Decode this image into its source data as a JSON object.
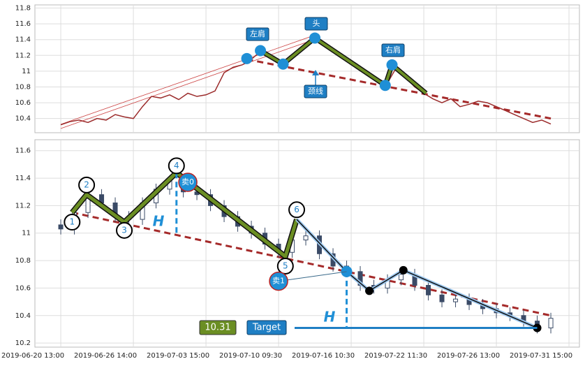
{
  "chart_data": [
    {
      "type": "line",
      "color": "#9b2b2b",
      "x": [
        0,
        2,
        4,
        6,
        8,
        10,
        12,
        14,
        16,
        18,
        20,
        22,
        24,
        26,
        28,
        30,
        32,
        34,
        36,
        38,
        40,
        42,
        44,
        46,
        48,
        50,
        52,
        54,
        56,
        58,
        60,
        62,
        64,
        66,
        68,
        70,
        72,
        74,
        76,
        78,
        80,
        82,
        84,
        86,
        88,
        90,
        92,
        94,
        96,
        98,
        100,
        102,
        104,
        106,
        108
      ],
      "values": [
        10.32,
        10.36,
        10.38,
        10.35,
        10.4,
        10.38,
        10.45,
        10.42,
        10.4,
        10.55,
        10.68,
        10.66,
        10.7,
        10.64,
        10.72,
        10.68,
        10.7,
        10.75,
        10.98,
        11.05,
        11.08,
        11.15,
        11.25,
        11.2,
        11.12,
        11.1,
        11.25,
        11.35,
        11.42,
        11.35,
        11.25,
        11.2,
        11.1,
        11.05,
        10.98,
        10.9,
        10.85,
        11.05,
        10.92,
        10.8,
        10.72,
        10.65,
        10.6,
        10.65,
        10.55,
        10.58,
        10.62,
        10.6,
        10.55,
        10.5,
        10.45,
        10.4,
        10.35,
        10.38,
        10.33
      ],
      "xlim": [
        -5.7,
        114.3
      ],
      "ylim": [
        10.22,
        11.84
      ],
      "yticks": [
        10.4,
        10.6,
        10.8,
        11.0,
        11.2,
        11.4,
        11.6,
        11.8
      ],
      "xticks": [
        0,
        16,
        32,
        48,
        64,
        80,
        96,
        112
      ],
      "grid": true,
      "neckline": {
        "x": [
          41,
          108
        ],
        "y": [
          11.15,
          10.4
        ]
      },
      "channel": {
        "x": [
          0,
          56
        ],
        "y": [
          10.3,
          11.43
        ]
      },
      "pattern": {
        "x": [
          44,
          49,
          56,
          71.5,
          73,
          80.5
        ],
        "y": [
          11.26,
          11.09,
          11.42,
          10.82,
          11.08,
          10.72
        ]
      },
      "points": {
        "x": [
          41,
          44,
          49,
          56,
          71.5,
          73
        ],
        "y": [
          11.16,
          11.26,
          11.09,
          11.42,
          10.82,
          11.08
        ]
      },
      "labels": [
        "左肩",
        "头",
        "右肩",
        "颈线"
      ]
    },
    {
      "type": "candlestick",
      "up_color": "#ffffff",
      "down_color": "#3a4a66",
      "x": [
        0,
        3,
        6,
        9,
        12,
        15,
        18,
        21,
        24,
        27,
        30,
        33,
        36,
        39,
        42,
        45,
        48,
        51,
        54,
        57,
        60,
        63,
        66,
        69,
        72,
        75,
        78,
        81,
        84,
        87,
        90,
        93,
        96,
        99,
        102,
        105,
        108
      ],
      "open": [
        11.06,
        11.03,
        11.15,
        11.28,
        11.22,
        11.12,
        11.1,
        11.22,
        11.32,
        11.38,
        11.3,
        11.28,
        11.2,
        11.12,
        11.05,
        11.0,
        10.92,
        10.86,
        10.95,
        10.98,
        10.85,
        10.76,
        10.72,
        10.62,
        10.6,
        10.66,
        10.7,
        10.62,
        10.55,
        10.5,
        10.52,
        10.48,
        10.45,
        10.42,
        10.4,
        10.36,
        10.31
      ],
      "high": [
        11.1,
        11.19,
        11.32,
        11.32,
        11.26,
        11.16,
        11.26,
        11.36,
        11.42,
        11.42,
        11.34,
        11.32,
        11.24,
        11.16,
        11.09,
        11.04,
        10.96,
        10.99,
        11.02,
        11.02,
        10.89,
        10.8,
        10.76,
        10.66,
        10.7,
        10.74,
        10.74,
        10.66,
        10.59,
        10.56,
        10.56,
        10.52,
        10.49,
        10.46,
        10.44,
        10.4,
        10.42
      ],
      "low": [
        10.99,
        10.99,
        11.11,
        11.18,
        11.08,
        11.06,
        11.06,
        11.18,
        11.28,
        11.26,
        11.24,
        11.16,
        11.08,
        11.01,
        10.96,
        10.88,
        10.82,
        10.82,
        10.91,
        10.81,
        10.72,
        10.68,
        10.58,
        10.56,
        10.56,
        10.62,
        10.58,
        10.51,
        10.46,
        10.46,
        10.44,
        10.41,
        10.38,
        10.36,
        10.32,
        10.27,
        10.27
      ],
      "close": [
        11.03,
        11.15,
        11.28,
        11.22,
        11.12,
        11.1,
        11.22,
        11.32,
        11.38,
        11.3,
        11.28,
        11.2,
        11.12,
        11.05,
        11.0,
        10.92,
        10.86,
        10.95,
        10.98,
        10.85,
        10.76,
        10.72,
        10.62,
        10.6,
        10.66,
        10.7,
        10.62,
        10.55,
        10.5,
        10.52,
        10.48,
        10.45,
        10.42,
        10.4,
        10.36,
        10.31,
        10.38
      ],
      "xlim": [
        -5.7,
        114.3
      ],
      "ylim": [
        10.17,
        11.68
      ],
      "yticks": [
        10.2,
        10.4,
        10.6,
        10.8,
        11.0,
        11.2,
        11.4,
        11.6
      ],
      "xticks": [
        {
          "value": 0,
          "label": "2019-06-20 13:00"
        },
        {
          "value": 16,
          "label": "2019-06-26 14:00"
        },
        {
          "value": 32,
          "label": "2019-07-03 15:00"
        },
        {
          "value": 48,
          "label": "2019-07-10 09:30"
        },
        {
          "value": 64,
          "label": "2019-07-16 10:30"
        },
        {
          "value": 80,
          "label": "2019-07-22 11:30"
        },
        {
          "value": 96,
          "label": "2019-07-26 13:00"
        },
        {
          "value": 112,
          "label": "2019-07-31 15:00"
        }
      ],
      "grid": true,
      "neckline": {
        "x": [
          2.5,
          108
        ],
        "y": [
          11.15,
          10.4
        ]
      },
      "pattern": {
        "x": [
          2.5,
          5.7,
          14,
          25.5,
          49.5,
          52
        ],
        "y": [
          11.15,
          11.28,
          11.08,
          11.44,
          10.83,
          11.1
        ]
      },
      "trail": {
        "x": [
          52,
          63,
          68,
          75.5,
          105
        ],
        "y": [
          11.1,
          10.72,
          10.58,
          10.73,
          10.31
        ]
      },
      "markers": [
        {
          "label": "1",
          "x": 2.5,
          "y": 11.08
        },
        {
          "label": "2",
          "x": 5.7,
          "y": 11.35
        },
        {
          "label": "3",
          "x": 14,
          "y": 11.02
        },
        {
          "label": "4",
          "x": 25.5,
          "y": 11.49
        },
        {
          "label": "5",
          "x": 49.5,
          "y": 10.76
        },
        {
          "label": "6",
          "x": 52,
          "y": 11.17
        }
      ],
      "sells": [
        {
          "label": "卖0",
          "x": 28,
          "y": 11.37
        },
        {
          "label": "卖1",
          "x": 48,
          "y": 10.65
        }
      ],
      "h_label": "H",
      "target": 10.31,
      "target_label": "Target"
    }
  ]
}
